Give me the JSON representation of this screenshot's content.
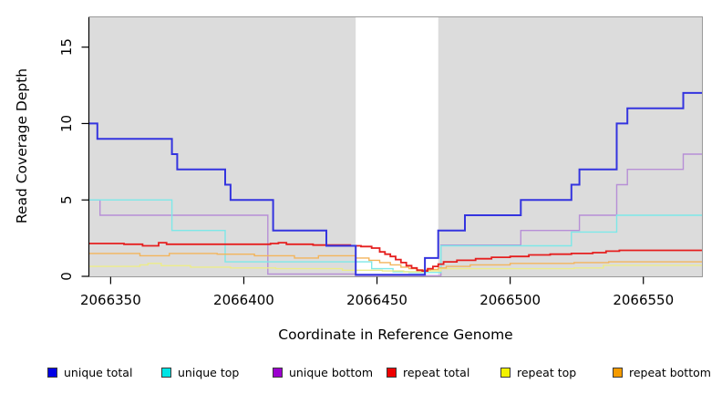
{
  "chart_data": {
    "type": "line",
    "subtype": "step-coverage",
    "title": "",
    "xlabel": "Coordinate in Reference Genome",
    "ylabel": "Read Coverage Depth",
    "xlim": [
      2066342,
      2066572
    ],
    "ylim": [
      0,
      16.95
    ],
    "x_ticks": [
      2066350,
      2066400,
      2066450,
      2066500,
      2066550
    ],
    "y_ticks": [
      0,
      5,
      10,
      15
    ],
    "grid": false,
    "legend_position": "bottom",
    "plot_bg": "#dcdcdc",
    "border_color": "#9a9a9a",
    "axis_color": "#000000",
    "highlight_band": {
      "x_start": 2066442,
      "x_end": 2066473,
      "color": "#ffffff"
    },
    "series": [
      {
        "name": "unique total",
        "legend_color": "#0000e5",
        "line_color": "#3434df",
        "line_width": 2,
        "points": [
          [
            2066342,
            10
          ],
          [
            2066345,
            9
          ],
          [
            2066373,
            8
          ],
          [
            2066375,
            7
          ],
          [
            2066393,
            6
          ],
          [
            2066395,
            5
          ],
          [
            2066411,
            3
          ],
          [
            2066431,
            2
          ],
          [
            2066442,
            0.1
          ],
          [
            2066468,
            1.2
          ],
          [
            2066473,
            3
          ],
          [
            2066483,
            4
          ],
          [
            2066504,
            5
          ],
          [
            2066523,
            6
          ],
          [
            2066526,
            7
          ],
          [
            2066540,
            10
          ],
          [
            2066544,
            11
          ],
          [
            2066565,
            12
          ],
          [
            2066572,
            12
          ]
        ]
      },
      {
        "name": "unique top",
        "legend_color": "#00e5e5",
        "line_color": "#7de8e8",
        "line_width": 1.4,
        "points": [
          [
            2066342,
            5
          ],
          [
            2066373,
            3
          ],
          [
            2066393,
            0.95
          ],
          [
            2066448,
            0.5
          ],
          [
            2066456,
            0.3
          ],
          [
            2066462,
            0.25
          ],
          [
            2066474,
            2
          ],
          [
            2066523,
            2.9
          ],
          [
            2066540,
            4
          ],
          [
            2066572,
            4
          ]
        ]
      },
      {
        "name": "unique bottom",
        "legend_color": "#9b00cf",
        "line_color": "#b78fd6",
        "line_width": 1.4,
        "points": [
          [
            2066342,
            5
          ],
          [
            2066346,
            4
          ],
          [
            2066409,
            0.15
          ],
          [
            2066442,
            0.05
          ],
          [
            2066474,
            2.05
          ],
          [
            2066504,
            3
          ],
          [
            2066526,
            4
          ],
          [
            2066540,
            6
          ],
          [
            2066544,
            7
          ],
          [
            2066565,
            8
          ],
          [
            2066572,
            8
          ]
        ]
      },
      {
        "name": "repeat total",
        "legend_color": "#ee0000",
        "line_color": "#e51f1f",
        "line_width": 1.8,
        "points": [
          [
            2066342,
            2.15
          ],
          [
            2066355,
            2.1
          ],
          [
            2066362,
            2.0
          ],
          [
            2066368,
            2.2
          ],
          [
            2066371,
            2.1
          ],
          [
            2066410,
            2.15
          ],
          [
            2066413,
            2.2
          ],
          [
            2066416,
            2.1
          ],
          [
            2066426,
            2.05
          ],
          [
            2066440,
            2.0
          ],
          [
            2066444,
            1.95
          ],
          [
            2066448,
            1.85
          ],
          [
            2066451,
            1.6
          ],
          [
            2066453,
            1.45
          ],
          [
            2066455,
            1.3
          ],
          [
            2066457,
            1.1
          ],
          [
            2066459,
            0.9
          ],
          [
            2066461,
            0.7
          ],
          [
            2066463,
            0.55
          ],
          [
            2066465,
            0.4
          ],
          [
            2066467,
            0.35
          ],
          [
            2066469,
            0.5
          ],
          [
            2066471,
            0.65
          ],
          [
            2066473,
            0.8
          ],
          [
            2066475,
            0.95
          ],
          [
            2066480,
            1.05
          ],
          [
            2066487,
            1.15
          ],
          [
            2066493,
            1.25
          ],
          [
            2066500,
            1.3
          ],
          [
            2066507,
            1.4
          ],
          [
            2066515,
            1.45
          ],
          [
            2066523,
            1.5
          ],
          [
            2066531,
            1.55
          ],
          [
            2066536,
            1.65
          ],
          [
            2066541,
            1.7
          ],
          [
            2066572,
            1.7
          ]
        ]
      },
      {
        "name": "repeat top",
        "legend_color": "#f2f200",
        "line_color": "#ecec8a",
        "line_width": 1.4,
        "points": [
          [
            2066342,
            0.65
          ],
          [
            2066361,
            0.75
          ],
          [
            2066364,
            0.85
          ],
          [
            2066369,
            0.7
          ],
          [
            2066380,
            0.6
          ],
          [
            2066395,
            0.55
          ],
          [
            2066412,
            0.5
          ],
          [
            2066437,
            0.4
          ],
          [
            2066452,
            0.35
          ],
          [
            2066460,
            0.3
          ],
          [
            2066468,
            0.35
          ],
          [
            2066474,
            0.5
          ],
          [
            2066524,
            0.55
          ],
          [
            2066535,
            0.72
          ],
          [
            2066572,
            0.72
          ]
        ]
      },
      {
        "name": "repeat bottom",
        "legend_color": "#f59b00",
        "line_color": "#f3b45b",
        "line_width": 1.4,
        "points": [
          [
            2066342,
            1.5
          ],
          [
            2066361,
            1.35
          ],
          [
            2066372,
            1.5
          ],
          [
            2066390,
            1.45
          ],
          [
            2066404,
            1.35
          ],
          [
            2066419,
            1.2
          ],
          [
            2066428,
            1.35
          ],
          [
            2066442,
            1.2
          ],
          [
            2066447,
            1.05
          ],
          [
            2066451,
            0.9
          ],
          [
            2066455,
            0.75
          ],
          [
            2066459,
            0.6
          ],
          [
            2066462,
            0.5
          ],
          [
            2066465,
            0.42
          ],
          [
            2066470,
            0.45
          ],
          [
            2066473,
            0.55
          ],
          [
            2066476,
            0.65
          ],
          [
            2066485,
            0.75
          ],
          [
            2066500,
            0.85
          ],
          [
            2066524,
            0.9
          ],
          [
            2066537,
            0.95
          ],
          [
            2066572,
            0.95
          ]
        ]
      }
    ]
  }
}
